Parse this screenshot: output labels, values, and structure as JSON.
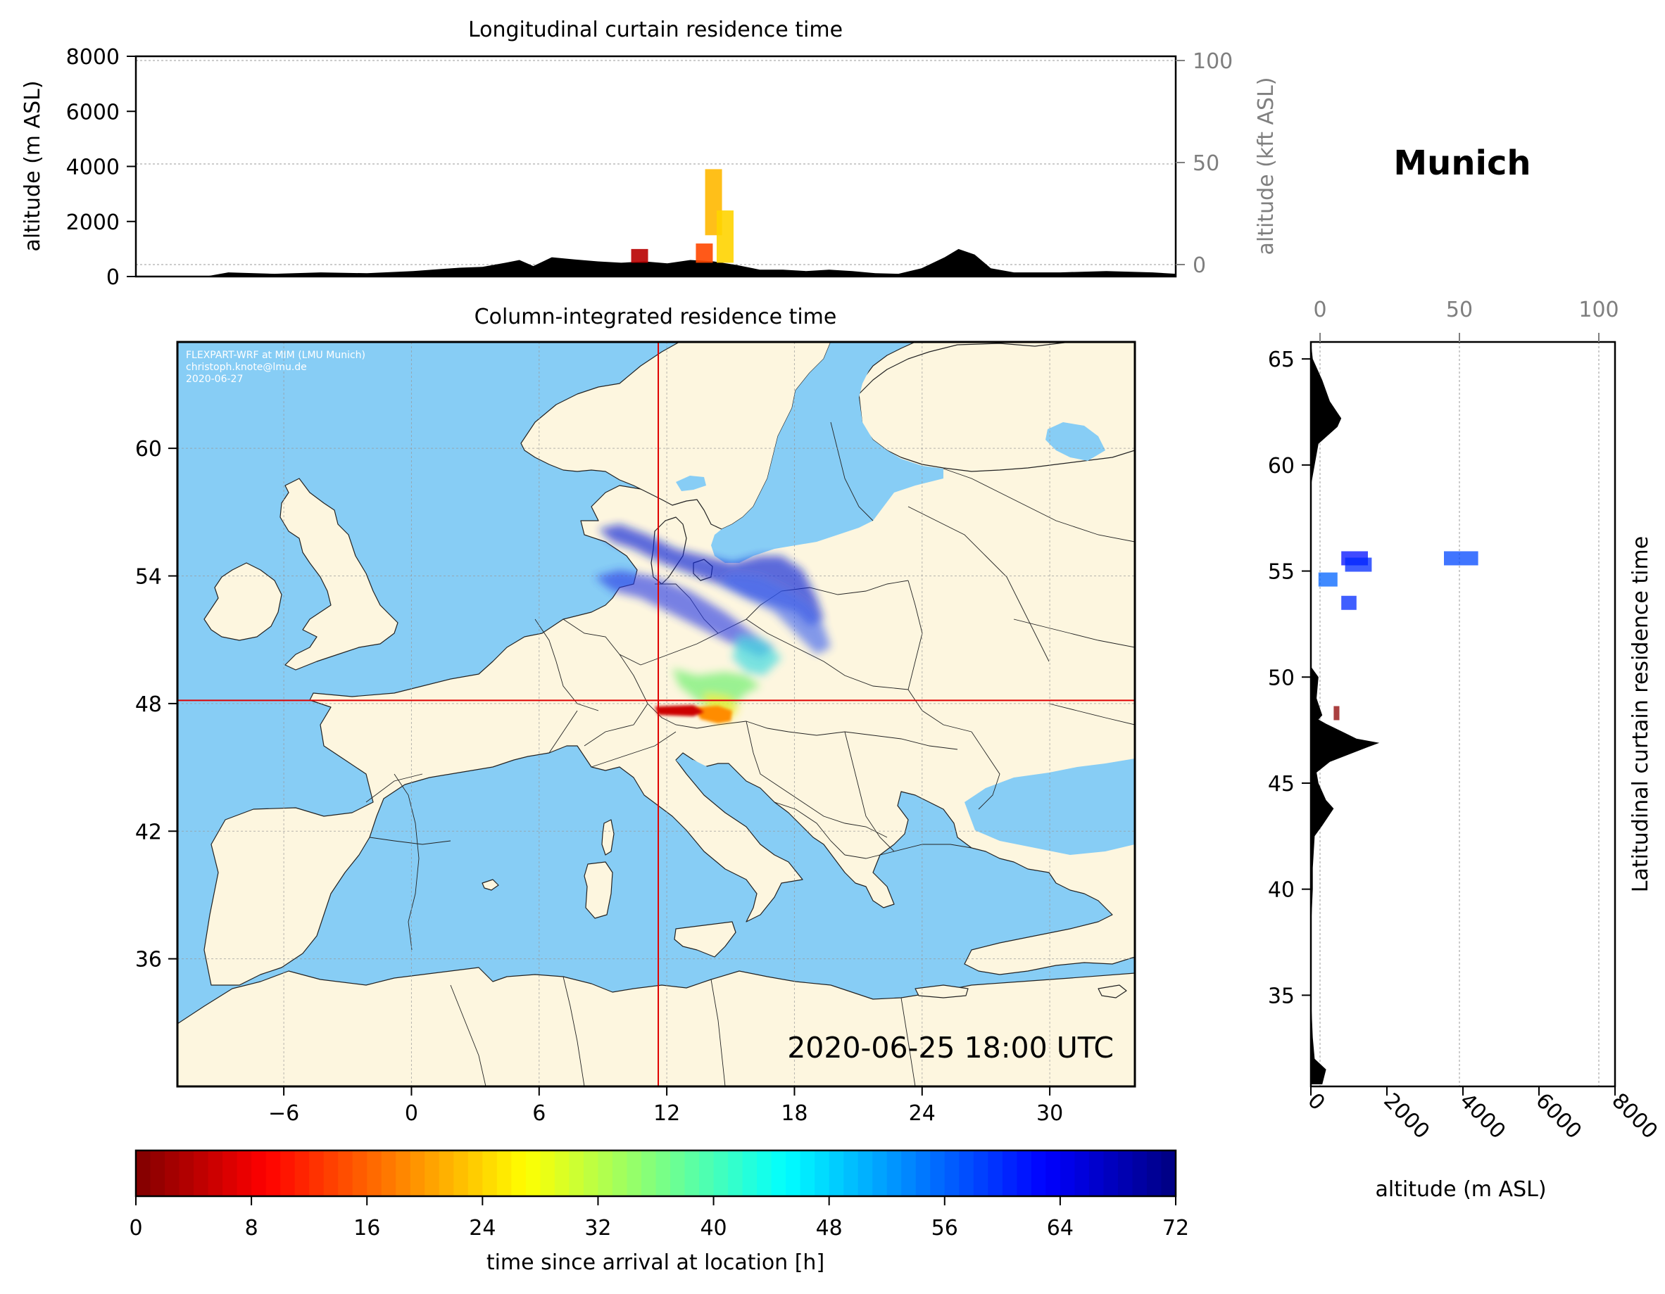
{
  "location_title": "Munich",
  "timestamp": "2020-06-25 18:00 UTC",
  "credits": [
    "FLEXPART-WRF at MIM (LMU Munich)",
    "christoph.knote@lmu.de",
    "2020-06-27"
  ],
  "colors": {
    "land": "#fdf6df",
    "sea": "#87cdf5",
    "terrain": "#000000",
    "crosshair": "#e00000",
    "gridline": "#999999",
    "secondary_axis": "#7f7f7f"
  },
  "chart_data": [
    {
      "id": "longitudinal",
      "type": "area",
      "title": "Longitudinal curtain residence time",
      "ylabel": "altitude (m ASL)",
      "ylabel_right": "altitude (kft ASL)",
      "ylim": [
        0,
        8000
      ],
      "yticks": [
        "0",
        "2000",
        "4000",
        "6000",
        "8000"
      ],
      "yticks_right": [
        "0",
        "50",
        "100"
      ],
      "x_lon": [
        -10,
        -7,
        -6,
        -4,
        -2,
        0,
        2,
        4,
        5,
        6,
        6.6,
        7.2,
        8,
        9,
        10,
        11,
        12,
        13,
        14,
        15,
        16,
        17,
        18,
        19,
        20,
        21,
        22,
        23,
        24,
        25,
        25.6,
        26.3,
        27,
        28,
        30,
        32,
        34,
        35
      ],
      "terrain_m": [
        0,
        0,
        150,
        100,
        150,
        120,
        200,
        320,
        350,
        500,
        600,
        380,
        700,
        620,
        550,
        500,
        550,
        480,
        600,
        550,
        420,
        250,
        250,
        200,
        250,
        200,
        120,
        100,
        300,
        700,
        1000,
        800,
        300,
        150,
        150,
        200,
        150,
        100
      ],
      "residence_segments": [
        {
          "x_lon": 11.8,
          "y_range_m": [
            500,
            1000
          ],
          "hours": 4
        },
        {
          "x_lon": 14.6,
          "y_range_m": [
            500,
            1200
          ],
          "hours": 14
        },
        {
          "x_lon": 15.0,
          "y_range_m": [
            1500,
            3900
          ],
          "hours": 22
        },
        {
          "x_lon": 15.5,
          "y_range_m": [
            500,
            2400
          ],
          "hours": 24
        }
      ]
    },
    {
      "id": "column",
      "type": "heatmap",
      "title": "Column-integrated residence time",
      "xlim": [
        -11,
        34
      ],
      "ylim": [
        30,
        65
      ],
      "xticks": [
        "−6",
        "0",
        "6",
        "12",
        "18",
        "24",
        "30"
      ],
      "yticks": [
        "36",
        "42",
        "48",
        "54",
        "60"
      ],
      "location": {
        "lon": 11.6,
        "lat": 48.15
      },
      "trajectory": [
        {
          "lon": 14.4,
          "lat": 48.0,
          "hours": 2
        },
        {
          "lon": 13.0,
          "lat": 48.15,
          "hours": 4
        },
        {
          "lon": 15.5,
          "lat": 49.5,
          "hours": 22
        },
        {
          "lon": 16.0,
          "lat": 50.5,
          "hours": 32
        },
        {
          "lon": 17.0,
          "lat": 51.8,
          "hours": 42
        },
        {
          "lon": 18.5,
          "lat": 52.8,
          "hours": 50
        },
        {
          "lon": 16.0,
          "lat": 54.5,
          "hours": 60
        },
        {
          "lon": 12.0,
          "lat": 55.5,
          "hours": 66
        },
        {
          "lon": 9.5,
          "lat": 57.0,
          "hours": 72
        }
      ]
    },
    {
      "id": "latitudinal",
      "type": "area",
      "ylabel": "Latitudinal curtain residence time",
      "xlabel": "altitude (m ASL)",
      "xlim": [
        0,
        8000
      ],
      "xticks": [
        "0",
        "2000",
        "4000",
        "6000",
        "8000"
      ],
      "xticks_top": [
        "0",
        "50",
        "100"
      ],
      "ylim": [
        30.7,
        65.8
      ],
      "yticks": [
        "35",
        "40",
        "45",
        "50",
        "55",
        "60",
        "65"
      ],
      "lat": [
        30.8,
        31.5,
        32,
        33,
        35,
        38,
        40,
        41,
        42.5,
        43.0,
        43.8,
        44.2,
        45.0,
        45.5,
        46.0,
        46.7,
        46.9,
        47.1,
        47.8,
        48.0,
        48.2,
        49.0,
        50,
        50.5,
        51,
        52,
        53,
        54,
        55,
        57,
        58.5,
        59,
        60,
        61,
        61.8,
        62.2,
        63,
        64,
        65,
        65.8
      ],
      "terrain_m": [
        300,
        400,
        100,
        50,
        0,
        0,
        50,
        50,
        100,
        300,
        600,
        400,
        200,
        150,
        500,
        1500,
        1800,
        1200,
        400,
        200,
        300,
        150,
        200,
        0,
        0,
        0,
        0,
        0,
        0,
        0,
        0,
        0,
        100,
        200,
        700,
        800,
        500,
        300,
        50,
        0
      ],
      "residence_segments": [
        {
          "lat": 55.6,
          "x_range_m": [
            800,
            1500
          ],
          "hours": 62
        },
        {
          "lat": 55.3,
          "x_range_m": [
            900,
            1600
          ],
          "hours": 60
        },
        {
          "lat": 53.5,
          "x_range_m": [
            800,
            1200
          ],
          "hours": 60
        },
        {
          "lat": 55.6,
          "x_range_m": [
            3500,
            4400
          ],
          "hours": 58
        },
        {
          "lat": 54.6,
          "x_range_m": [
            200,
            700
          ],
          "hours": 56
        },
        {
          "lat": 48.3,
          "x_range_m": [
            600,
            750
          ],
          "hours": 1
        }
      ]
    }
  ],
  "colorbar": {
    "label": "time since arrival at location [h]",
    "min": 0,
    "max": 72,
    "ticks": [
      "0",
      "8",
      "16",
      "24",
      "32",
      "40",
      "48",
      "56",
      "64",
      "72"
    ]
  }
}
